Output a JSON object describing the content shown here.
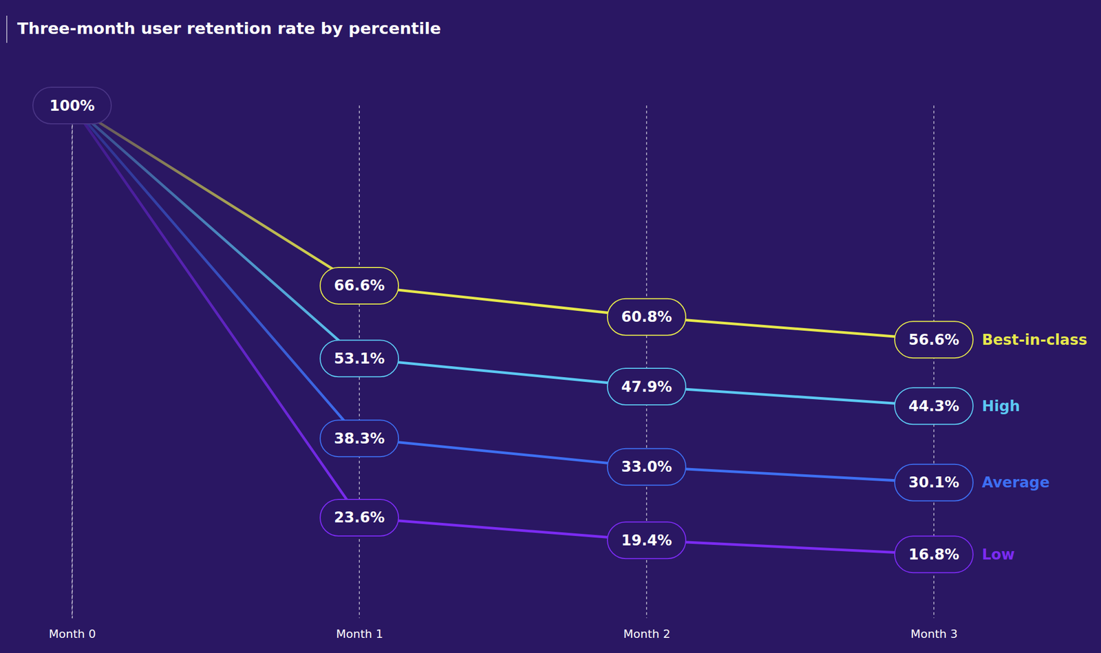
{
  "chart_data": {
    "type": "line",
    "title": "Three-month user retention rate by percentile",
    "categories": [
      "Month 0",
      "Month 1",
      "Month 2",
      "Month 3"
    ],
    "ylim": [
      5,
      100
    ],
    "grid": true,
    "data_labels": true,
    "tick_labels": "x",
    "series": [
      {
        "name": "Best-in-class",
        "color": "#e6e84c",
        "values": [
          100,
          66.6,
          60.8,
          56.6
        ],
        "value_labels": [
          "100%",
          "66.6%",
          "60.8%",
          "56.6%"
        ]
      },
      {
        "name": "High",
        "color": "#5cc8f2",
        "values": [
          100,
          53.1,
          47.9,
          44.3
        ],
        "value_labels": [
          null,
          "53.1%",
          "47.9%",
          "44.3%"
        ]
      },
      {
        "name": "Average",
        "color": "#3e6ff2",
        "values": [
          100,
          38.3,
          33.0,
          30.1
        ],
        "value_labels": [
          null,
          "38.3%",
          "33.0%",
          "30.1%"
        ]
      },
      {
        "name": "Low",
        "color": "#7b2bf2",
        "values": [
          100,
          23.6,
          19.4,
          16.8
        ],
        "value_labels": [
          null,
          "23.6%",
          "19.4%",
          "16.8%"
        ]
      }
    ]
  }
}
